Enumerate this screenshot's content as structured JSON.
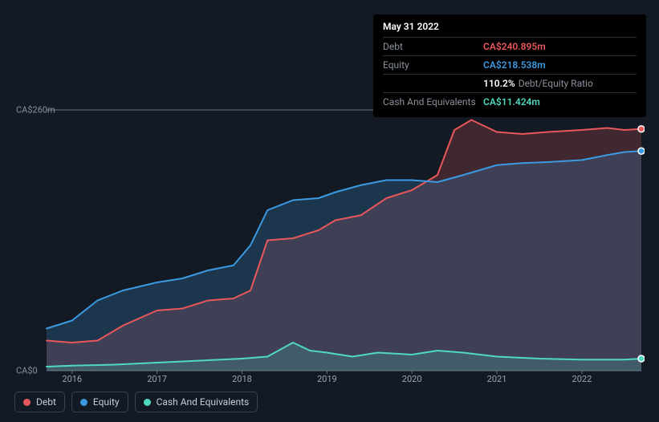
{
  "tooltip": {
    "date": "May 31 2022",
    "rows": [
      {
        "label": "Debt",
        "value": "CA$240.895m",
        "color": "#e8575a"
      },
      {
        "label": "Equity",
        "value": "CA$218.538m",
        "color": "#3b9ae1"
      },
      {
        "label": "",
        "value": "110.2%",
        "suffix": "Debt/Equity Ratio",
        "color": "#ffffff"
      },
      {
        "label": "Cash And Equivalents",
        "value": "CA$11.424m",
        "color": "#4fd9c0"
      }
    ]
  },
  "chart": {
    "type": "area-line",
    "background": "#131a24",
    "grid_color": "#2a3140",
    "axis_line_color": "#6a7280",
    "ylim": [
      0,
      260
    ],
    "y_ticks": [
      {
        "v": 0,
        "label": "CA$0"
      },
      {
        "v": 260,
        "label": "CA$260m"
      }
    ],
    "x_years": [
      2016,
      2017,
      2018,
      2019,
      2020,
      2021,
      2022
    ],
    "x_range": [
      2015.7,
      2022.7
    ],
    "series": [
      {
        "name": "Debt",
        "color": "#e8575a",
        "fill": "rgba(232,87,90,0.22)",
        "line_width": 2,
        "data": [
          [
            2015.7,
            30
          ],
          [
            2016.0,
            28
          ],
          [
            2016.3,
            30
          ],
          [
            2016.6,
            45
          ],
          [
            2017.0,
            60
          ],
          [
            2017.3,
            62
          ],
          [
            2017.6,
            70
          ],
          [
            2017.9,
            72
          ],
          [
            2018.1,
            80
          ],
          [
            2018.3,
            130
          ],
          [
            2018.6,
            132
          ],
          [
            2018.9,
            140
          ],
          [
            2019.1,
            150
          ],
          [
            2019.4,
            155
          ],
          [
            2019.7,
            172
          ],
          [
            2020.0,
            180
          ],
          [
            2020.3,
            195
          ],
          [
            2020.5,
            240
          ],
          [
            2020.7,
            250
          ],
          [
            2021.0,
            238
          ],
          [
            2021.3,
            236
          ],
          [
            2021.6,
            238
          ],
          [
            2022.0,
            240
          ],
          [
            2022.3,
            242
          ],
          [
            2022.5,
            240
          ],
          [
            2022.7,
            241
          ]
        ]
      },
      {
        "name": "Equity",
        "color": "#3b9ae1",
        "fill": "rgba(59,154,225,0.22)",
        "line_width": 2,
        "data": [
          [
            2015.7,
            42
          ],
          [
            2016.0,
            50
          ],
          [
            2016.3,
            70
          ],
          [
            2016.6,
            80
          ],
          [
            2017.0,
            88
          ],
          [
            2017.3,
            92
          ],
          [
            2017.6,
            100
          ],
          [
            2017.9,
            105
          ],
          [
            2018.1,
            125
          ],
          [
            2018.3,
            160
          ],
          [
            2018.6,
            170
          ],
          [
            2018.9,
            172
          ],
          [
            2019.1,
            178
          ],
          [
            2019.4,
            185
          ],
          [
            2019.7,
            190
          ],
          [
            2020.0,
            190
          ],
          [
            2020.3,
            188
          ],
          [
            2020.6,
            195
          ],
          [
            2021.0,
            205
          ],
          [
            2021.3,
            207
          ],
          [
            2021.6,
            208
          ],
          [
            2022.0,
            210
          ],
          [
            2022.3,
            215
          ],
          [
            2022.5,
            218
          ],
          [
            2022.7,
            219
          ]
        ]
      },
      {
        "name": "Cash And Equivalents",
        "color": "#4fd9c0",
        "fill": "rgba(79,217,192,0.18)",
        "line_width": 2,
        "data": [
          [
            2015.7,
            4
          ],
          [
            2016.0,
            5
          ],
          [
            2016.5,
            6
          ],
          [
            2017.0,
            8
          ],
          [
            2017.5,
            10
          ],
          [
            2018.0,
            12
          ],
          [
            2018.3,
            14
          ],
          [
            2018.6,
            28
          ],
          [
            2018.8,
            20
          ],
          [
            2019.0,
            18
          ],
          [
            2019.3,
            14
          ],
          [
            2019.6,
            18
          ],
          [
            2020.0,
            16
          ],
          [
            2020.3,
            20
          ],
          [
            2020.6,
            18
          ],
          [
            2021.0,
            14
          ],
          [
            2021.5,
            12
          ],
          [
            2022.0,
            11
          ],
          [
            2022.5,
            11
          ],
          [
            2022.7,
            12
          ]
        ]
      }
    ],
    "end_markers": [
      {
        "series": "Debt",
        "color": "#e8575a"
      },
      {
        "series": "Equity",
        "color": "#3b9ae1"
      },
      {
        "series": "Cash And Equivalents",
        "color": "#4fd9c0"
      }
    ]
  },
  "legend": [
    {
      "label": "Debt",
      "color": "#e8575a"
    },
    {
      "label": "Equity",
      "color": "#3b9ae1"
    },
    {
      "label": "Cash And Equivalents",
      "color": "#4fd9c0"
    }
  ]
}
